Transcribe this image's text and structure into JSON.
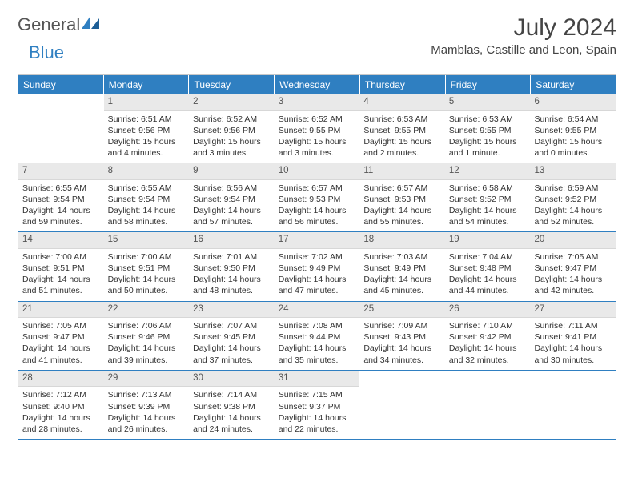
{
  "brand": {
    "part1": "General",
    "part2": "Blue"
  },
  "title": "July 2024",
  "location": "Mamblas, Castille and Leon, Spain",
  "colors": {
    "header_bg": "#2f7fc1",
    "header_text": "#ffffff",
    "daynum_bg": "#e9e9e9",
    "row_border": "#2f7fc1",
    "text": "#333333",
    "page_bg": "#ffffff"
  },
  "weekdays": [
    "Sunday",
    "Monday",
    "Tuesday",
    "Wednesday",
    "Thursday",
    "Friday",
    "Saturday"
  ],
  "weeks": [
    [
      {
        "n": "",
        "sr": "",
        "ss": "",
        "dl": ""
      },
      {
        "n": "1",
        "sr": "6:51 AM",
        "ss": "9:56 PM",
        "dl": "15 hours and 4 minutes."
      },
      {
        "n": "2",
        "sr": "6:52 AM",
        "ss": "9:56 PM",
        "dl": "15 hours and 3 minutes."
      },
      {
        "n": "3",
        "sr": "6:52 AM",
        "ss": "9:55 PM",
        "dl": "15 hours and 3 minutes."
      },
      {
        "n": "4",
        "sr": "6:53 AM",
        "ss": "9:55 PM",
        "dl": "15 hours and 2 minutes."
      },
      {
        "n": "5",
        "sr": "6:53 AM",
        "ss": "9:55 PM",
        "dl": "15 hours and 1 minute."
      },
      {
        "n": "6",
        "sr": "6:54 AM",
        "ss": "9:55 PM",
        "dl": "15 hours and 0 minutes."
      }
    ],
    [
      {
        "n": "7",
        "sr": "6:55 AM",
        "ss": "9:54 PM",
        "dl": "14 hours and 59 minutes."
      },
      {
        "n": "8",
        "sr": "6:55 AM",
        "ss": "9:54 PM",
        "dl": "14 hours and 58 minutes."
      },
      {
        "n": "9",
        "sr": "6:56 AM",
        "ss": "9:54 PM",
        "dl": "14 hours and 57 minutes."
      },
      {
        "n": "10",
        "sr": "6:57 AM",
        "ss": "9:53 PM",
        "dl": "14 hours and 56 minutes."
      },
      {
        "n": "11",
        "sr": "6:57 AM",
        "ss": "9:53 PM",
        "dl": "14 hours and 55 minutes."
      },
      {
        "n": "12",
        "sr": "6:58 AM",
        "ss": "9:52 PM",
        "dl": "14 hours and 54 minutes."
      },
      {
        "n": "13",
        "sr": "6:59 AM",
        "ss": "9:52 PM",
        "dl": "14 hours and 52 minutes."
      }
    ],
    [
      {
        "n": "14",
        "sr": "7:00 AM",
        "ss": "9:51 PM",
        "dl": "14 hours and 51 minutes."
      },
      {
        "n": "15",
        "sr": "7:00 AM",
        "ss": "9:51 PM",
        "dl": "14 hours and 50 minutes."
      },
      {
        "n": "16",
        "sr": "7:01 AM",
        "ss": "9:50 PM",
        "dl": "14 hours and 48 minutes."
      },
      {
        "n": "17",
        "sr": "7:02 AM",
        "ss": "9:49 PM",
        "dl": "14 hours and 47 minutes."
      },
      {
        "n": "18",
        "sr": "7:03 AM",
        "ss": "9:49 PM",
        "dl": "14 hours and 45 minutes."
      },
      {
        "n": "19",
        "sr": "7:04 AM",
        "ss": "9:48 PM",
        "dl": "14 hours and 44 minutes."
      },
      {
        "n": "20",
        "sr": "7:05 AM",
        "ss": "9:47 PM",
        "dl": "14 hours and 42 minutes."
      }
    ],
    [
      {
        "n": "21",
        "sr": "7:05 AM",
        "ss": "9:47 PM",
        "dl": "14 hours and 41 minutes."
      },
      {
        "n": "22",
        "sr": "7:06 AM",
        "ss": "9:46 PM",
        "dl": "14 hours and 39 minutes."
      },
      {
        "n": "23",
        "sr": "7:07 AM",
        "ss": "9:45 PM",
        "dl": "14 hours and 37 minutes."
      },
      {
        "n": "24",
        "sr": "7:08 AM",
        "ss": "9:44 PM",
        "dl": "14 hours and 35 minutes."
      },
      {
        "n": "25",
        "sr": "7:09 AM",
        "ss": "9:43 PM",
        "dl": "14 hours and 34 minutes."
      },
      {
        "n": "26",
        "sr": "7:10 AM",
        "ss": "9:42 PM",
        "dl": "14 hours and 32 minutes."
      },
      {
        "n": "27",
        "sr": "7:11 AM",
        "ss": "9:41 PM",
        "dl": "14 hours and 30 minutes."
      }
    ],
    [
      {
        "n": "28",
        "sr": "7:12 AM",
        "ss": "9:40 PM",
        "dl": "14 hours and 28 minutes."
      },
      {
        "n": "29",
        "sr": "7:13 AM",
        "ss": "9:39 PM",
        "dl": "14 hours and 26 minutes."
      },
      {
        "n": "30",
        "sr": "7:14 AM",
        "ss": "9:38 PM",
        "dl": "14 hours and 24 minutes."
      },
      {
        "n": "31",
        "sr": "7:15 AM",
        "ss": "9:37 PM",
        "dl": "14 hours and 22 minutes."
      },
      {
        "n": "",
        "sr": "",
        "ss": "",
        "dl": ""
      },
      {
        "n": "",
        "sr": "",
        "ss": "",
        "dl": ""
      },
      {
        "n": "",
        "sr": "",
        "ss": "",
        "dl": ""
      }
    ]
  ],
  "labels": {
    "sunrise": "Sunrise:",
    "sunset": "Sunset:",
    "daylight": "Daylight:"
  }
}
